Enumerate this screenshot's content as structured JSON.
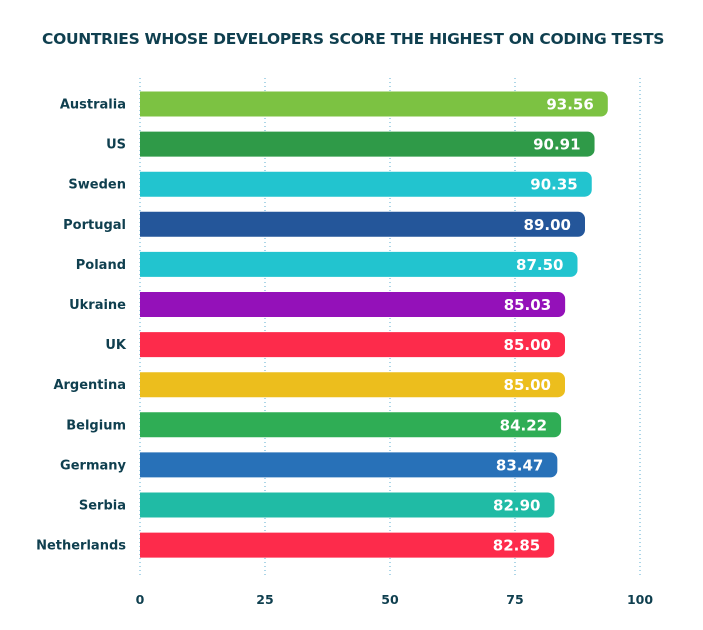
{
  "chart_data": {
    "type": "bar",
    "orientation": "horizontal",
    "title": "COUNTRIES WHOSE DEVELOPERS SCORE THE HIGHEST ON CODING TESTS",
    "categories": [
      "Australia",
      "US",
      "Sweden",
      "Portugal",
      "Poland",
      "Ukraine",
      "UK",
      "Argentina",
      "Belgium",
      "Germany",
      "Serbia",
      "Netherlands"
    ],
    "values": [
      93.56,
      90.91,
      90.35,
      89.0,
      87.5,
      85.03,
      85.0,
      85.0,
      84.22,
      83.47,
      82.9,
      82.85
    ],
    "value_labels": [
      "93.56",
      "90.91",
      "90.35",
      "89.00",
      "87.50",
      "85.03",
      "85.00",
      "85.00",
      "84.22",
      "83.47",
      "82.90",
      "82.85"
    ],
    "colors": [
      "#7cc242",
      "#2f9a48",
      "#22c4cf",
      "#24569a",
      "#22c4cf",
      "#9411b9",
      "#fd2b4b",
      "#ecbe1d",
      "#2fad55",
      "#2871b8",
      "#20bba5",
      "#fd2b4b"
    ],
    "xticks": [
      0,
      25,
      50,
      75,
      100
    ],
    "xlim": [
      0,
      100
    ],
    "grid": true,
    "xlabel": "",
    "ylabel": ""
  }
}
